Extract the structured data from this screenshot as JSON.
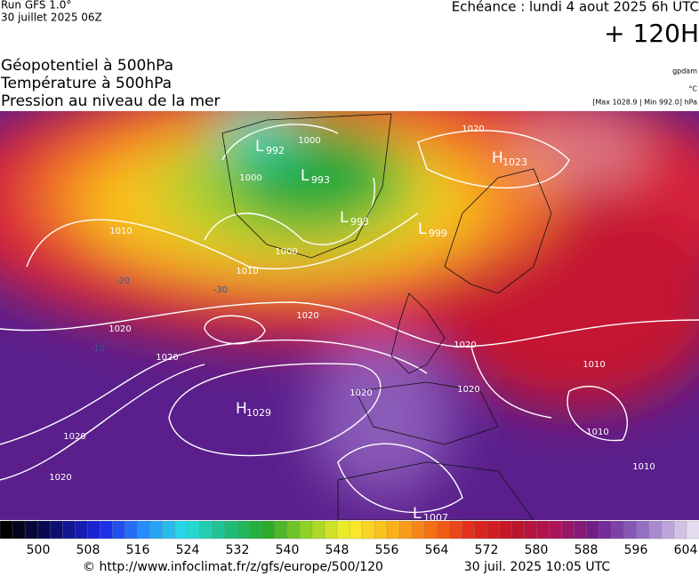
{
  "header": {
    "run": "Run GFS 1.0°",
    "run_date": "30 juillet 2025 06Z",
    "valid": "Echéance : lundi 4 aout 2025 6h UTC",
    "lead": "+ 120H"
  },
  "titles": [
    "Géopotentiel à 500hPa",
    "Température à 500hPa",
    "Pression au niveau de la mer"
  ],
  "units": {
    "geopotential": "gpdam",
    "temperature": "°C",
    "pressure_range": "[Max 1028.9 | Min 992.0] hPa"
  },
  "centers": [
    {
      "type": "L",
      "value": "992"
    },
    {
      "type": "L",
      "value": "993"
    },
    {
      "type": "L",
      "value": "993"
    },
    {
      "type": "L",
      "value": "999"
    },
    {
      "type": "H",
      "value": "1023"
    },
    {
      "type": "H",
      "value": "1029"
    },
    {
      "type": "L",
      "value": "1007"
    }
  ],
  "isobar_labels": [
    "1000",
    "1000",
    "1000",
    "1010",
    "1010",
    "1020",
    "1020",
    "1020",
    "1020",
    "1020",
    "1020",
    "1020",
    "1020",
    "1020",
    "1010",
    "1010",
    "1010"
  ],
  "temperature_labels": [
    "-20",
    "-30",
    "-10"
  ],
  "colorbar_ticks": [
    "500",
    "508",
    "516",
    "524",
    "532",
    "540",
    "548",
    "556",
    "564",
    "572",
    "580",
    "588",
    "596",
    "604"
  ],
  "footer": {
    "source": "© http://www.infoclimat.fr/z/gfs/europe/500/120",
    "generated": "30 juil. 2025 10:05 UTC"
  }
}
